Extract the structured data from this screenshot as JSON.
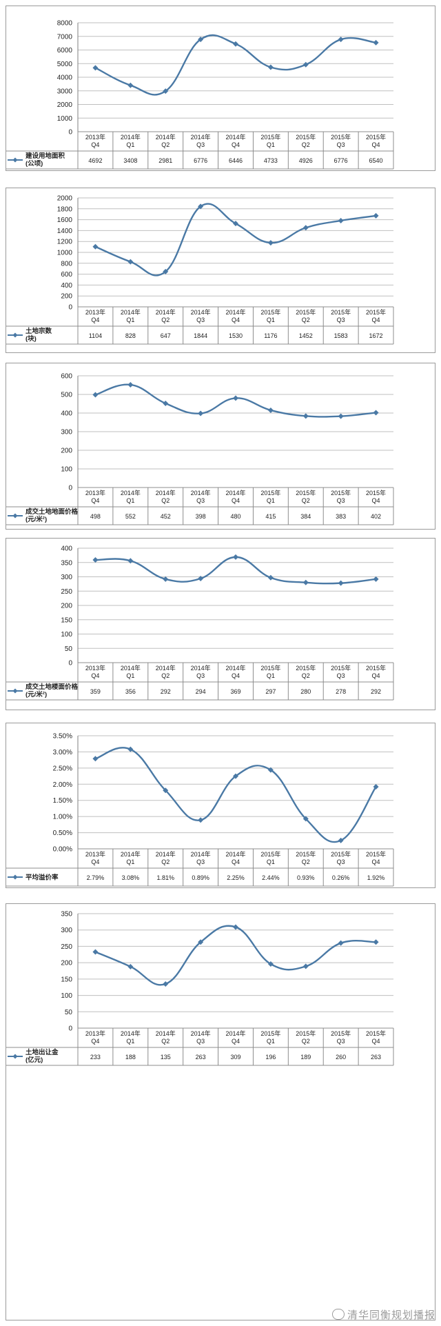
{
  "chart_data": [
    {
      "type": "line",
      "categories": [
        [
          "2013年",
          "Q4"
        ],
        [
          "2014年",
          "Q1"
        ],
        [
          "2014年",
          "Q2"
        ],
        [
          "2014年",
          "Q3"
        ],
        [
          "2014年",
          "Q4"
        ],
        [
          "2015年",
          "Q1"
        ],
        [
          "2015年",
          "Q2"
        ],
        [
          "2015年",
          "Q3"
        ],
        [
          "2015年",
          "Q4"
        ]
      ],
      "series": [
        {
          "name": [
            "建设用地面积",
            "(公顷)"
          ],
          "values": [
            4692,
            3408,
            2981,
            6776,
            6446,
            4733,
            4926,
            6776,
            6540
          ],
          "labels": [
            "4692",
            "3408",
            "2981",
            "6776",
            "6446",
            "4733",
            "4926",
            "6776",
            "6540"
          ]
        }
      ],
      "ylim": [
        0,
        8000
      ],
      "yticks": [
        "0",
        "1000",
        "2000",
        "3000",
        "4000",
        "5000",
        "6000",
        "7000",
        "8000"
      ]
    },
    {
      "type": "line",
      "categories": [
        [
          "2013年",
          "Q4"
        ],
        [
          "2014年",
          "Q1"
        ],
        [
          "2014年",
          "Q2"
        ],
        [
          "2014年",
          "Q3"
        ],
        [
          "2014年",
          "Q4"
        ],
        [
          "2015年",
          "Q1"
        ],
        [
          "2015年",
          "Q2"
        ],
        [
          "2015年",
          "Q3"
        ],
        [
          "2015年",
          "Q4"
        ]
      ],
      "series": [
        {
          "name": [
            "土地宗数",
            "(块)"
          ],
          "values": [
            1104,
            828,
            647,
            1844,
            1530,
            1176,
            1452,
            1583,
            1672
          ],
          "labels": [
            "1104",
            "828",
            "647",
            "1844",
            "1530",
            "1176",
            "1452",
            "1583",
            "1672"
          ]
        }
      ],
      "ylim": [
        0,
        2000
      ],
      "yticks": [
        "0",
        "200",
        "400",
        "600",
        "800",
        "1000",
        "1200",
        "1400",
        "1600",
        "1800",
        "2000"
      ]
    },
    {
      "type": "line",
      "categories": [
        [
          "2013年",
          "Q4"
        ],
        [
          "2014年",
          "Q1"
        ],
        [
          "2014年",
          "Q2"
        ],
        [
          "2014年",
          "Q3"
        ],
        [
          "2014年",
          "Q4"
        ],
        [
          "2015年",
          "Q1"
        ],
        [
          "2015年",
          "Q2"
        ],
        [
          "2015年",
          "Q3"
        ],
        [
          "2015年",
          "Q4"
        ]
      ],
      "series": [
        {
          "name": [
            "成交土地地面价格",
            "(元/米²)"
          ],
          "values": [
            498,
            552,
            452,
            398,
            480,
            415,
            384,
            383,
            402
          ],
          "labels": [
            "498",
            "552",
            "452",
            "398",
            "480",
            "415",
            "384",
            "383",
            "402"
          ]
        }
      ],
      "ylim": [
        0,
        600
      ],
      "yticks": [
        "0",
        "100",
        "200",
        "300",
        "400",
        "500",
        "600"
      ]
    },
    {
      "type": "line",
      "categories": [
        [
          "2013年",
          "Q4"
        ],
        [
          "2014年",
          "Q1"
        ],
        [
          "2014年",
          "Q2"
        ],
        [
          "2014年",
          "Q3"
        ],
        [
          "2014年",
          "Q4"
        ],
        [
          "2015年",
          "Q1"
        ],
        [
          "2015年",
          "Q2"
        ],
        [
          "2015年",
          "Q3"
        ],
        [
          "2015年",
          "Q4"
        ]
      ],
      "series": [
        {
          "name": [
            "成交土地楼面价格",
            "(元/米²)"
          ],
          "values": [
            359,
            356,
            292,
            294,
            369,
            297,
            280,
            278,
            292
          ],
          "labels": [
            "359",
            "356",
            "292",
            "294",
            "369",
            "297",
            "280",
            "278",
            "292"
          ]
        }
      ],
      "ylim": [
        0,
        400
      ],
      "yticks": [
        "0",
        "50",
        "100",
        "150",
        "200",
        "250",
        "300",
        "350",
        "400"
      ]
    },
    {
      "type": "line",
      "categories": [
        [
          "2013年",
          "Q4"
        ],
        [
          "2014年",
          "Q1"
        ],
        [
          "2014年",
          "Q2"
        ],
        [
          "2014年",
          "Q3"
        ],
        [
          "2014年",
          "Q4"
        ],
        [
          "2015年",
          "Q1"
        ],
        [
          "2015年",
          "Q2"
        ],
        [
          "2015年",
          "Q3"
        ],
        [
          "2015年",
          "Q4"
        ]
      ],
      "series": [
        {
          "name": [
            "平均溢价率"
          ],
          "values": [
            2.79,
            3.08,
            1.81,
            0.89,
            2.25,
            2.44,
            0.93,
            0.26,
            1.92
          ],
          "labels": [
            "2.79%",
            "3.08%",
            "1.81%",
            "0.89%",
            "2.25%",
            "2.44%",
            "0.93%",
            "0.26%",
            "1.92%"
          ]
        }
      ],
      "ylim": [
        0,
        3.5
      ],
      "yticks": [
        "0.00%",
        "0.50%",
        "1.00%",
        "1.50%",
        "2.00%",
        "2.50%",
        "3.00%",
        "3.50%"
      ]
    },
    {
      "type": "line",
      "categories": [
        [
          "2013年",
          "Q4"
        ],
        [
          "2014年",
          "Q1"
        ],
        [
          "2014年",
          "Q2"
        ],
        [
          "2014年",
          "Q3"
        ],
        [
          "2014年",
          "Q4"
        ],
        [
          "2015年",
          "Q1"
        ],
        [
          "2015年",
          "Q2"
        ],
        [
          "2015年",
          "Q3"
        ],
        [
          "2015年",
          "Q4"
        ]
      ],
      "series": [
        {
          "name": [
            "土地出让金",
            "(亿元)"
          ],
          "values": [
            233,
            188,
            135,
            263,
            309,
            196,
            189,
            260,
            263
          ],
          "labels": [
            "233",
            "188",
            "135",
            "263",
            "309",
            "196",
            "189",
            "260",
            "263"
          ]
        }
      ],
      "ylim": [
        0,
        350
      ],
      "yticks": [
        "0",
        "50",
        "100",
        "150",
        "200",
        "250",
        "300",
        "350"
      ]
    }
  ],
  "watermark": {
    "text": "清华同衡规划播报",
    "icon": "wechat-icon"
  },
  "colors": {
    "series": "#4a79a5",
    "grid": "#bfbfbf"
  }
}
